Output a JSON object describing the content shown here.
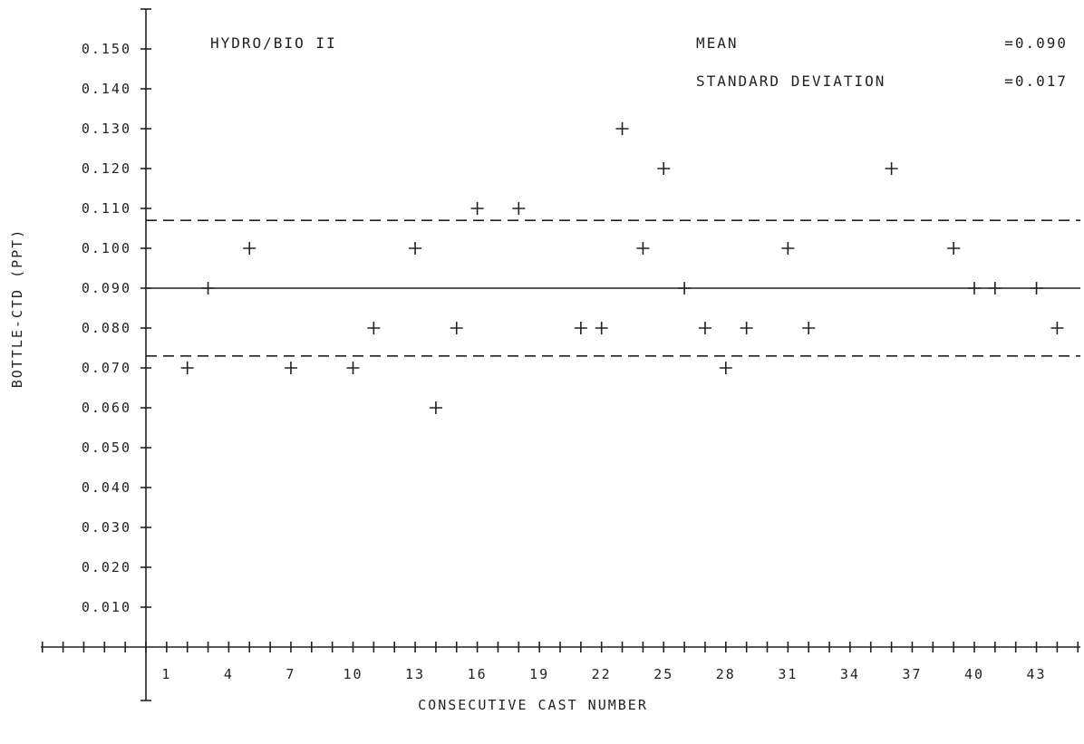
{
  "chart_data": {
    "type": "scatter",
    "title": "HYDRO/BIO II",
    "xlabel": "CONSECUTIVE CAST NUMBER",
    "ylabel": "BOTTLE-CTD (PPT)",
    "xlim": [
      0,
      45
    ],
    "ylim": [
      0,
      0.16
    ],
    "xticks": [
      "1",
      "4",
      "7",
      "10",
      "13",
      "16",
      "19",
      "22",
      "25",
      "28",
      "31",
      "34",
      "37",
      "40",
      "43"
    ],
    "yticks": [
      "0.010",
      "0.020",
      "0.030",
      "0.040",
      "0.050",
      "0.060",
      "0.070",
      "0.080",
      "0.090",
      "0.100",
      "0.110",
      "0.120",
      "0.130",
      "0.140",
      "0.150"
    ],
    "mean_label": "MEAN",
    "mean_value_text": "=0.090",
    "sd_label": "STANDARD DEVIATION",
    "sd_value_text": "=0.017",
    "mean": 0.09,
    "upper_band": 0.107,
    "lower_band": 0.073,
    "points": [
      {
        "x": 2,
        "y": 0.07
      },
      {
        "x": 3,
        "y": 0.09
      },
      {
        "x": 5,
        "y": 0.1
      },
      {
        "x": 7,
        "y": 0.07
      },
      {
        "x": 10,
        "y": 0.07
      },
      {
        "x": 11,
        "y": 0.08
      },
      {
        "x": 13,
        "y": 0.1
      },
      {
        "x": 14,
        "y": 0.06
      },
      {
        "x": 15,
        "y": 0.08
      },
      {
        "x": 16,
        "y": 0.11
      },
      {
        "x": 18,
        "y": 0.11
      },
      {
        "x": 21,
        "y": 0.08
      },
      {
        "x": 22,
        "y": 0.08
      },
      {
        "x": 23,
        "y": 0.13
      },
      {
        "x": 24,
        "y": 0.1
      },
      {
        "x": 25,
        "y": 0.12
      },
      {
        "x": 26,
        "y": 0.09
      },
      {
        "x": 27,
        "y": 0.08
      },
      {
        "x": 28,
        "y": 0.07
      },
      {
        "x": 29,
        "y": 0.08
      },
      {
        "x": 31,
        "y": 0.1
      },
      {
        "x": 32,
        "y": 0.08
      },
      {
        "x": 36,
        "y": 0.12
      },
      {
        "x": 39,
        "y": 0.1
      },
      {
        "x": 40,
        "y": 0.09
      },
      {
        "x": 41,
        "y": 0.09
      },
      {
        "x": 43,
        "y": 0.09
      },
      {
        "x": 44,
        "y": 0.08
      }
    ]
  }
}
